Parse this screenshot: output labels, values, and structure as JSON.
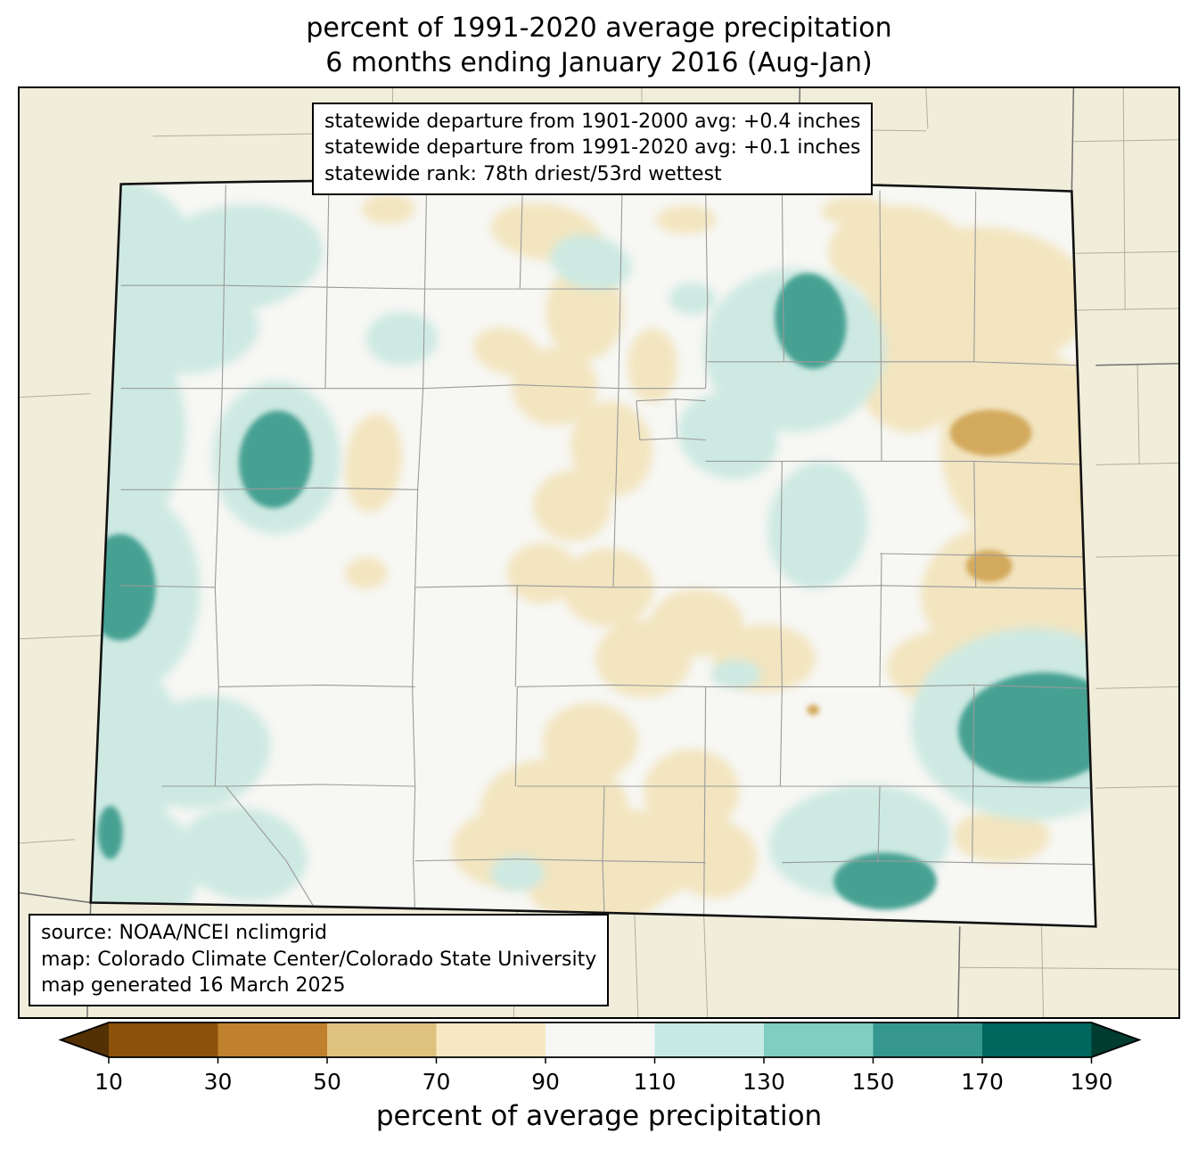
{
  "title": {
    "line1": "percent of 1991-2020 average precipitation",
    "line2": "6 months ending January 2016 (Aug-Jan)"
  },
  "stats_box": {
    "lines": [
      "statewide departure from 1901-2000 avg: +0.4 inches",
      "statewide departure from 1991-2020 avg: +0.1 inches",
      "statewide rank: 78th driest/53rd wettest"
    ]
  },
  "source_box": {
    "lines": [
      "source: NOAA/NCEI nclimgrid",
      "map: Colorado Climate Center/Colorado State University",
      "map generated 16 March 2025"
    ]
  },
  "colorbar": {
    "label": "percent of average precipitation",
    "ticks": [
      "10",
      "30",
      "50",
      "70",
      "90",
      "110",
      "130",
      "150",
      "170",
      "190"
    ],
    "segment_colors": [
      "#8c510a",
      "#bf812d",
      "#dfc27d",
      "#f6e8c3",
      "#f7f7f5",
      "#c7eae5",
      "#80cdc1",
      "#35978f",
      "#01665e"
    ],
    "arrow_left_color": "#543005",
    "arrow_right_color": "#003c30"
  },
  "map": {
    "region": "Colorado",
    "palette": {
      "background": "#f0edda",
      "state_fill": "#f7f7f4",
      "tan_light": "#f2e5c0",
      "tan_mid": "#d3a95c",
      "teal_light": "#cde9e2",
      "teal_mid": "#47a193",
      "county_line": "#9a9a9a",
      "state_border": "#111111"
    }
  }
}
